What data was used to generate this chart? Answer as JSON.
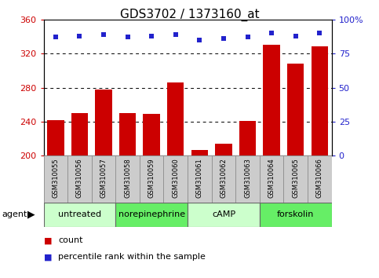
{
  "title": "GDS3702 / 1373160_at",
  "samples": [
    "GSM310055",
    "GSM310056",
    "GSM310057",
    "GSM310058",
    "GSM310059",
    "GSM310060",
    "GSM310061",
    "GSM310062",
    "GSM310063",
    "GSM310064",
    "GSM310065",
    "GSM310066"
  ],
  "counts": [
    242,
    250,
    278,
    250,
    249,
    286,
    207,
    214,
    241,
    330,
    308,
    328
  ],
  "percentile_ranks": [
    87,
    88,
    89,
    87,
    88,
    89,
    85,
    86,
    87,
    90,
    88,
    90
  ],
  "ylim_left": [
    200,
    360
  ],
  "ylim_right": [
    0,
    100
  ],
  "yticks_left": [
    200,
    240,
    280,
    320,
    360
  ],
  "yticks_right": [
    0,
    25,
    50,
    75,
    100
  ],
  "bar_color": "#cc0000",
  "dot_color": "#2222cc",
  "grid_lines": [
    240,
    280,
    320
  ],
  "agent_groups": [
    {
      "label": "untreated",
      "start": 0,
      "end": 3,
      "color": "#ccffcc"
    },
    {
      "label": "norepinephrine",
      "start": 3,
      "end": 6,
      "color": "#66ee66"
    },
    {
      "label": "cAMP",
      "start": 6,
      "end": 9,
      "color": "#ccffcc"
    },
    {
      "label": "forskolin",
      "start": 9,
      "end": 12,
      "color": "#66ee66"
    }
  ],
  "legend_items": [
    {
      "color": "#cc0000",
      "label": "count"
    },
    {
      "color": "#2222cc",
      "label": "percentile rank within the sample"
    }
  ],
  "title_fontsize": 11,
  "tick_fontsize": 8,
  "bar_label_fontsize": 6.5,
  "agent_fontsize": 8,
  "legend_fontsize": 8
}
